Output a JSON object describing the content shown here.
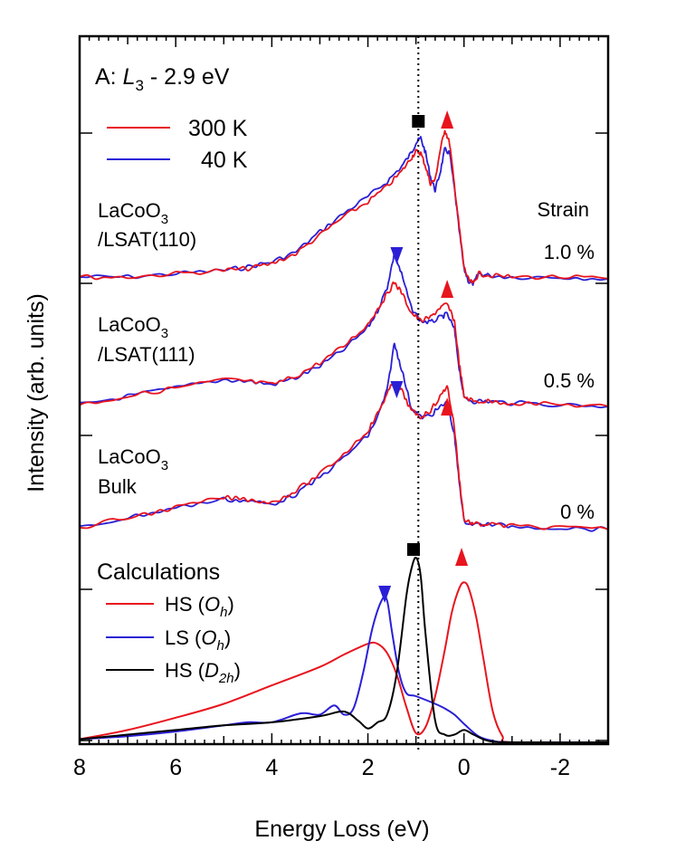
{
  "chart_data": {
    "type": "line",
    "title": "A: L3 - 2.9 eV",
    "title_parts": {
      "prefix": "A: ",
      "italic": "L",
      "sub": "3",
      "suffix": " - 2.9 eV"
    },
    "xlabel": "Energy Loss (eV)",
    "ylabel": "Intensity (arb. units)",
    "xlim": [
      8,
      -3
    ],
    "xticks": [
      8,
      6,
      4,
      2,
      0,
      -2
    ],
    "dotted_marker_x": 0.95,
    "legend_temps": [
      {
        "label": "300 K",
        "color": "#e8141e"
      },
      {
        "label": "40 K",
        "color": "#2a1fd6"
      }
    ],
    "strain_header": "Strain",
    "samples": [
      {
        "line1": "LaCoO",
        "sub": "3",
        "line2": "/LSAT(110)",
        "strain": "1.0 %"
      },
      {
        "line1": "LaCoO",
        "sub": "3",
        "line2": "/LSAT(111)",
        "strain": "0.5 %"
      },
      {
        "line1": "LaCoO",
        "sub": "3",
        "line2": "Bulk",
        "strain": "0 %"
      }
    ],
    "measured_series": [
      {
        "name": "1.0 % - 300 K",
        "color": "#e8141e",
        "x": [
          8.0,
          7.0,
          6.0,
          5.0,
          4.5,
          4.0,
          3.5,
          3.0,
          2.5,
          2.0,
          1.6,
          1.3,
          1.1,
          1.0,
          0.9,
          0.8,
          0.7,
          0.6,
          0.5,
          0.4,
          0.3,
          0.2,
          0.1,
          0.0,
          -0.1,
          -0.2,
          -0.3,
          -0.5,
          -1.0,
          -2.0,
          -3.0
        ],
        "y": [
          0.0,
          0.0,
          0.02,
          0.04,
          0.05,
          0.08,
          0.14,
          0.25,
          0.36,
          0.45,
          0.54,
          0.63,
          0.71,
          0.75,
          0.74,
          0.66,
          0.56,
          0.58,
          0.75,
          0.88,
          0.8,
          0.55,
          0.3,
          0.06,
          -0.02,
          -0.04,
          0.02,
          0.01,
          0.0,
          0.0,
          -0.01
        ]
      },
      {
        "name": "1.0 % - 40 K",
        "color": "#2a1fd6",
        "x": [
          8.0,
          7.0,
          6.0,
          5.0,
          4.5,
          4.0,
          3.5,
          3.0,
          2.5,
          2.0,
          1.6,
          1.3,
          1.1,
          1.0,
          0.9,
          0.8,
          0.7,
          0.6,
          0.5,
          0.4,
          0.3,
          0.2,
          0.1,
          0.0,
          -0.1,
          -0.2,
          -0.3,
          -0.5,
          -1.0,
          -2.0,
          -3.0
        ],
        "y": [
          0.0,
          0.0,
          0.02,
          0.04,
          0.06,
          0.09,
          0.15,
          0.27,
          0.38,
          0.48,
          0.57,
          0.66,
          0.74,
          0.8,
          0.83,
          0.74,
          0.6,
          0.52,
          0.62,
          0.76,
          0.74,
          0.53,
          0.28,
          0.05,
          -0.03,
          -0.04,
          0.02,
          0.01,
          0.0,
          0.0,
          -0.01
        ]
      },
      {
        "name": "0.5 % - 300 K",
        "color": "#e8141e",
        "x": [
          8.0,
          7.0,
          6.0,
          5.0,
          4.5,
          4.0,
          3.5,
          3.0,
          2.5,
          2.0,
          1.8,
          1.6,
          1.45,
          1.3,
          1.1,
          0.9,
          0.7,
          0.5,
          0.35,
          0.2,
          0.1,
          0.0,
          -0.2,
          -0.5,
          -1.0,
          -2.0,
          -3.0
        ],
        "y": [
          0.0,
          0.05,
          0.1,
          0.15,
          0.14,
          0.12,
          0.17,
          0.25,
          0.35,
          0.48,
          0.57,
          0.66,
          0.73,
          0.67,
          0.55,
          0.5,
          0.52,
          0.58,
          0.6,
          0.5,
          0.25,
          0.05,
          0.02,
          0.02,
          0.01,
          0.0,
          -0.01
        ]
      },
      {
        "name": "0.5 % - 40 K",
        "color": "#2a1fd6",
        "x": [
          8.0,
          7.0,
          6.0,
          5.0,
          4.5,
          4.0,
          3.5,
          3.0,
          2.5,
          2.0,
          1.8,
          1.6,
          1.45,
          1.3,
          1.1,
          0.9,
          0.7,
          0.5,
          0.35,
          0.2,
          0.1,
          0.0,
          -0.2,
          -0.5,
          -1.0,
          -2.0,
          -3.0
        ],
        "y": [
          0.0,
          0.05,
          0.1,
          0.15,
          0.14,
          0.12,
          0.16,
          0.23,
          0.33,
          0.46,
          0.56,
          0.7,
          0.9,
          0.78,
          0.58,
          0.5,
          0.49,
          0.52,
          0.54,
          0.45,
          0.22,
          0.04,
          0.02,
          0.02,
          0.01,
          0.0,
          -0.01
        ]
      },
      {
        "name": "0 % - 300 K",
        "color": "#e8141e",
        "x": [
          8.0,
          7.0,
          6.0,
          5.0,
          4.5,
          4.0,
          3.5,
          3.0,
          2.5,
          2.0,
          1.8,
          1.6,
          1.45,
          1.3,
          1.1,
          0.9,
          0.7,
          0.5,
          0.35,
          0.2,
          0.1,
          0.0,
          -0.2,
          -0.5,
          -1.0,
          -2.0,
          -3.0
        ],
        "y": [
          0.0,
          0.06,
          0.12,
          0.18,
          0.17,
          0.15,
          0.22,
          0.32,
          0.44,
          0.58,
          0.68,
          0.8,
          0.88,
          0.82,
          0.7,
          0.66,
          0.7,
          0.78,
          0.85,
          0.6,
          0.3,
          0.05,
          0.02,
          0.02,
          0.01,
          0.0,
          -0.01
        ]
      },
      {
        "name": "0 % - 40 K",
        "color": "#2a1fd6",
        "x": [
          8.0,
          7.0,
          6.0,
          5.0,
          4.5,
          4.0,
          3.5,
          3.0,
          2.5,
          2.0,
          1.8,
          1.6,
          1.45,
          1.3,
          1.1,
          0.9,
          0.7,
          0.5,
          0.35,
          0.2,
          0.1,
          0.0,
          -0.2,
          -0.5,
          -1.0,
          -2.0,
          -3.0
        ],
        "y": [
          0.0,
          0.06,
          0.12,
          0.17,
          0.16,
          0.14,
          0.2,
          0.3,
          0.42,
          0.55,
          0.66,
          0.82,
          1.1,
          0.95,
          0.72,
          0.66,
          0.67,
          0.72,
          0.75,
          0.55,
          0.28,
          0.04,
          0.02,
          0.02,
          0.01,
          0.0,
          -0.01
        ]
      }
    ],
    "calc_legend_title": "Calculations",
    "calc_series": [
      {
        "label": "HS",
        "italic": "O",
        "sub": "h",
        "color": "#e8141e",
        "x": [
          8.0,
          7.0,
          6.0,
          5.0,
          4.0,
          3.0,
          2.5,
          2.0,
          1.8,
          1.6,
          1.4,
          1.2,
          1.0,
          0.8,
          0.6,
          0.4,
          0.25,
          0.1,
          0.0,
          -0.1,
          -0.25,
          -0.4,
          -0.6,
          -0.8,
          -1.0,
          -3.0
        ],
        "y": [
          0.02,
          0.08,
          0.16,
          0.25,
          0.37,
          0.49,
          0.57,
          0.64,
          0.64,
          0.58,
          0.44,
          0.23,
          0.06,
          0.1,
          0.3,
          0.6,
          0.85,
          1.0,
          1.04,
          1.0,
          0.82,
          0.55,
          0.2,
          0.04,
          0.0,
          0.0
        ]
      },
      {
        "label": "LS ",
        "italic": "O",
        "sub": "h",
        "color": "#2a1fd6",
        "x": [
          8.0,
          7.0,
          6.0,
          5.0,
          4.5,
          4.0,
          3.5,
          3.3,
          3.0,
          2.7,
          2.5,
          2.3,
          2.1,
          1.9,
          1.7,
          1.6,
          1.5,
          1.35,
          1.2,
          1.0,
          0.6,
          0.4,
          0.2,
          0.0,
          -0.3,
          -0.6,
          -1.0,
          -3.0
        ],
        "y": [
          0.02,
          0.04,
          0.07,
          0.11,
          0.13,
          0.13,
          0.18,
          0.19,
          0.18,
          0.24,
          0.18,
          0.22,
          0.45,
          0.75,
          0.93,
          0.92,
          0.72,
          0.45,
          0.32,
          0.3,
          0.25,
          0.22,
          0.18,
          0.12,
          0.04,
          0.01,
          0.0,
          0.0
        ]
      },
      {
        "label": "HS ",
        "italic": "D",
        "sub": "2h",
        "color": "#000000",
        "x": [
          8.0,
          7.0,
          6.0,
          5.0,
          4.0,
          3.0,
          2.5,
          2.2,
          2.0,
          1.8,
          1.6,
          1.4,
          1.2,
          1.1,
          1.0,
          0.9,
          0.8,
          0.6,
          0.4,
          0.2,
          0.0,
          -0.2,
          -0.5,
          -1.0,
          -3.0
        ],
        "y": [
          0.02,
          0.05,
          0.08,
          0.11,
          0.13,
          0.17,
          0.2,
          0.14,
          0.09,
          0.13,
          0.18,
          0.45,
          0.95,
          1.12,
          1.2,
          1.08,
          0.7,
          0.14,
          0.05,
          0.05,
          0.08,
          0.05,
          0.01,
          0.0,
          0.0
        ]
      }
    ],
    "markers": [
      {
        "shape": "square",
        "color": "#000000",
        "x": 0.95,
        "panel": "top"
      },
      {
        "shape": "triangle-up",
        "color": "#e8141e",
        "x": 0.35,
        "panel": "top"
      },
      {
        "shape": "triangle-down",
        "color": "#2a1fd6",
        "x": 1.4,
        "panel": "mid"
      },
      {
        "shape": "triangle-up",
        "color": "#e8141e",
        "x": 0.35,
        "panel": "mid"
      },
      {
        "shape": "triangle-down",
        "color": "#2a1fd6",
        "x": 1.4,
        "panel": "low"
      },
      {
        "shape": "triangle-up",
        "color": "#e8141e",
        "x": 0.35,
        "panel": "low"
      },
      {
        "shape": "square",
        "color": "#000000",
        "x": 1.05,
        "panel": "calc"
      },
      {
        "shape": "triangle-up",
        "color": "#e8141e",
        "x": 0.05,
        "panel": "calc"
      },
      {
        "shape": "triangle-down",
        "color": "#2a1fd6",
        "x": 1.65,
        "panel": "calc"
      }
    ]
  }
}
